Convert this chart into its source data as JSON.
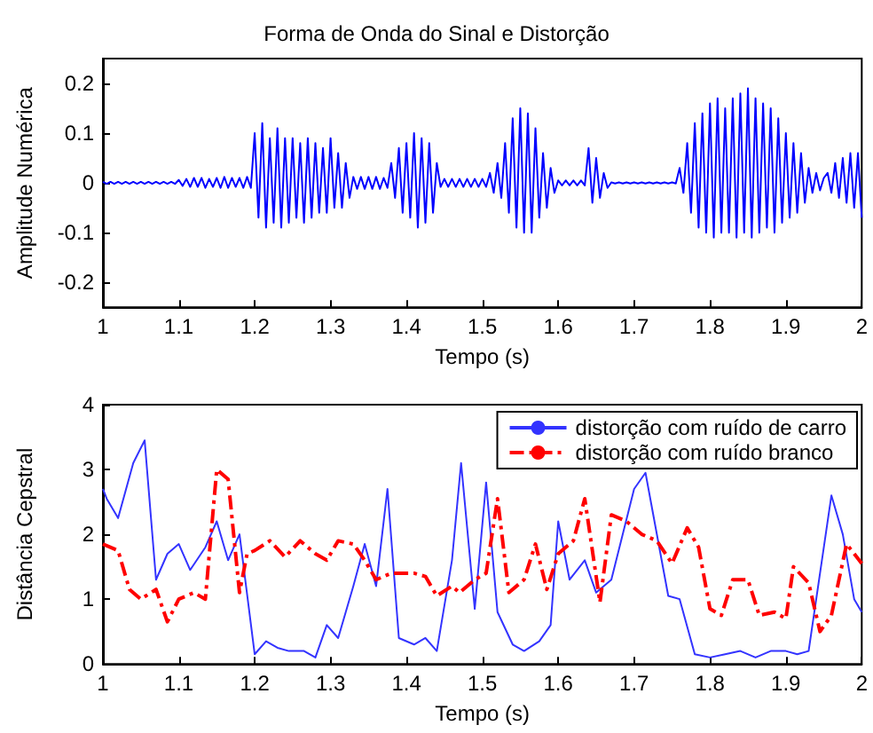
{
  "chart_data": [
    {
      "type": "line",
      "title": "Forma de Onda do Sinal e Distorção",
      "xlabel": "Tempo (s)",
      "ylabel": "Amplitude Numérica",
      "xlim": [
        1,
        2
      ],
      "ylim": [
        -0.25,
        0.25
      ],
      "xticks": [
        1,
        1.1,
        1.2,
        1.3,
        1.4,
        1.5,
        1.6,
        1.7,
        1.8,
        1.9,
        2
      ],
      "yticks": [
        -0.2,
        -0.1,
        0,
        0.1,
        0.2
      ],
      "grid": false,
      "legend": false,
      "marker": "none",
      "series": [
        {
          "color": "#0000ff",
          "line_style": "solid",
          "x": [
            1,
            1.005,
            1.01,
            1.015,
            1.02,
            1.025,
            1.03,
            1.035,
            1.04,
            1.045,
            1.05,
            1.055,
            1.06,
            1.065,
            1.07,
            1.075,
            1.08,
            1.085,
            1.09,
            1.095,
            1.1,
            1.105,
            1.11,
            1.115,
            1.12,
            1.125,
            1.13,
            1.135,
            1.14,
            1.145,
            1.15,
            1.155,
            1.16,
            1.165,
            1.17,
            1.175,
            1.18,
            1.185,
            1.19,
            1.195,
            1.2,
            1.205,
            1.21,
            1.215,
            1.22,
            1.225,
            1.23,
            1.235,
            1.24,
            1.245,
            1.25,
            1.255,
            1.26,
            1.265,
            1.27,
            1.275,
            1.28,
            1.285,
            1.29,
            1.295,
            1.3,
            1.305,
            1.31,
            1.315,
            1.32,
            1.325,
            1.33,
            1.335,
            1.34,
            1.345,
            1.35,
            1.355,
            1.36,
            1.365,
            1.37,
            1.375,
            1.38,
            1.385,
            1.39,
            1.395,
            1.4,
            1.405,
            1.41,
            1.415,
            1.42,
            1.425,
            1.43,
            1.435,
            1.44,
            1.445,
            1.45,
            1.455,
            1.46,
            1.465,
            1.47,
            1.475,
            1.48,
            1.485,
            1.49,
            1.495,
            1.5,
            1.505,
            1.51,
            1.515,
            1.52,
            1.525,
            1.53,
            1.535,
            1.54,
            1.545,
            1.55,
            1.555,
            1.56,
            1.565,
            1.57,
            1.575,
            1.58,
            1.585,
            1.59,
            1.595,
            1.6,
            1.605,
            1.61,
            1.615,
            1.62,
            1.625,
            1.63,
            1.635,
            1.64,
            1.645,
            1.65,
            1.655,
            1.66,
            1.665,
            1.67,
            1.675,
            1.68,
            1.685,
            1.69,
            1.695,
            1.7,
            1.705,
            1.71,
            1.715,
            1.72,
            1.725,
            1.73,
            1.735,
            1.74,
            1.745,
            1.75,
            1.755,
            1.76,
            1.765,
            1.77,
            1.775,
            1.78,
            1.785,
            1.79,
            1.795,
            1.8,
            1.805,
            1.81,
            1.815,
            1.82,
            1.825,
            1.83,
            1.835,
            1.84,
            1.845,
            1.85,
            1.855,
            1.86,
            1.865,
            1.87,
            1.875,
            1.88,
            1.885,
            1.89,
            1.895,
            1.9,
            1.905,
            1.91,
            1.915,
            1.92,
            1.925,
            1.93,
            1.935,
            1.94,
            1.945,
            1.95,
            1.955,
            1.96,
            1.965,
            1.97,
            1.975,
            1.98,
            1.985,
            1.99,
            1.995,
            2
          ],
          "values": [
            0.002,
            -0.002,
            0.002,
            -0.002,
            0.002,
            -0.002,
            0.002,
            -0.002,
            0.002,
            -0.002,
            0.002,
            -0.002,
            0.002,
            -0.002,
            0.002,
            -0.002,
            0.002,
            -0.002,
            0.002,
            -0.002,
            0.006,
            -0.006,
            0.008,
            -0.008,
            0.01,
            -0.008,
            0.01,
            -0.01,
            0.008,
            -0.008,
            0.01,
            -0.01,
            0.012,
            -0.01,
            0.01,
            -0.008,
            0.01,
            -0.01,
            0.012,
            -0.01,
            0.1,
            -0.07,
            0.12,
            -0.09,
            0.09,
            -0.08,
            0.11,
            -0.09,
            0.09,
            -0.08,
            0.09,
            -0.07,
            0.08,
            -0.08,
            0.09,
            -0.07,
            0.08,
            -0.06,
            0.07,
            -0.06,
            0.09,
            -0.05,
            0.06,
            -0.05,
            0.04,
            -0.03,
            0.012,
            -0.012,
            0.012,
            -0.012,
            0.012,
            -0.012,
            0.012,
            -0.012,
            0.01,
            -0.01,
            0.04,
            -0.03,
            0.07,
            -0.06,
            0.08,
            -0.07,
            0.1,
            -0.09,
            0.09,
            -0.08,
            0.08,
            -0.06,
            0.04,
            -0.008,
            0.008,
            -0.008,
            0.008,
            -0.008,
            0.008,
            -0.008,
            0.008,
            -0.008,
            0.008,
            -0.008,
            0.008,
            -0.008,
            0.02,
            -0.02,
            0.04,
            -0.03,
            0.08,
            -0.06,
            0.13,
            -0.09,
            0.15,
            -0.1,
            0.14,
            -0.1,
            0.11,
            -0.07,
            0.06,
            -0.05,
            0.03,
            -0.02,
            0.005,
            -0.005,
            0.005,
            -0.005,
            0.005,
            -0.005,
            0.005,
            -0.005,
            0.07,
            -0.04,
            0.05,
            -0.03,
            0.02,
            -0.01,
            0.001,
            -0.001,
            0.001,
            -0.001,
            0.001,
            -0.001,
            0.001,
            -0.001,
            0.001,
            -0.001,
            0.001,
            -0.001,
            0.001,
            -0.001,
            0.001,
            -0.001,
            0.001,
            -0.001,
            0.03,
            -0.02,
            0.08,
            -0.06,
            0.12,
            -0.09,
            0.14,
            -0.1,
            0.16,
            -0.11,
            0.17,
            -0.1,
            0.15,
            -0.1,
            0.17,
            -0.11,
            0.18,
            -0.1,
            0.19,
            -0.11,
            0.17,
            -0.1,
            0.16,
            -0.09,
            0.15,
            -0.1,
            0.13,
            -0.08,
            0.1,
            -0.07,
            0.08,
            -0.06,
            0.06,
            -0.04,
            0.03,
            -0.02,
            0.02,
            -0.015,
            0.01,
            0.02,
            -0.02,
            0.04,
            -0.03,
            0.05,
            -0.04,
            0.06,
            -0.05,
            0.06,
            -0.07
          ]
        }
      ]
    },
    {
      "type": "line",
      "xlabel": "Tempo (s)",
      "ylabel": "Distância Cepstral",
      "xlim": [
        1,
        2
      ],
      "ylim": [
        0,
        4
      ],
      "xticks": [
        1,
        1.1,
        1.2,
        1.3,
        1.4,
        1.5,
        1.6,
        1.7,
        1.8,
        1.9,
        2
      ],
      "yticks": [
        0,
        1,
        2,
        3,
        4
      ],
      "grid": false,
      "legend": "top right",
      "marker": "none",
      "series": [
        {
          "name": "distorção com ruído de carro",
          "color": "#3333ff",
          "line_style": "solid",
          "x": [
            1,
            1.005,
            1.02,
            1.04,
            1.055,
            1.07,
            1.085,
            1.1,
            1.115,
            1.135,
            1.15,
            1.165,
            1.18,
            1.2,
            1.215,
            1.23,
            1.245,
            1.265,
            1.28,
            1.295,
            1.31,
            1.33,
            1.345,
            1.36,
            1.375,
            1.39,
            1.41,
            1.425,
            1.44,
            1.46,
            1.472,
            1.49,
            1.505,
            1.52,
            1.54,
            1.555,
            1.575,
            1.59,
            1.6,
            1.615,
            1.635,
            1.65,
            1.67,
            1.7,
            1.715,
            1.745,
            1.76,
            1.78,
            1.8,
            1.82,
            1.84,
            1.86,
            1.88,
            1.9,
            1.915,
            1.93,
            1.96,
            1.975,
            1.99,
            2
          ],
          "values": [
            2.7,
            2.55,
            2.25,
            3.1,
            3.45,
            1.3,
            1.7,
            1.85,
            1.45,
            1.8,
            2.2,
            1.6,
            2.0,
            0.15,
            0.35,
            0.25,
            0.2,
            0.2,
            0.1,
            0.6,
            0.4,
            1.2,
            1.85,
            1.2,
            2.7,
            0.4,
            0.3,
            0.4,
            0.2,
            1.6,
            3.1,
            0.85,
            2.8,
            0.8,
            0.3,
            0.2,
            0.35,
            0.6,
            2.2,
            1.3,
            1.6,
            1.1,
            1.3,
            2.7,
            2.95,
            1.05,
            1.0,
            0.15,
            0.1,
            0.15,
            0.2,
            0.1,
            0.2,
            0.2,
            0.15,
            0.2,
            2.6,
            2.0,
            1.0,
            0.8
          ]
        },
        {
          "name": "distorção com ruído branco",
          "color": "#ff0000",
          "line_style": "dashed",
          "x": [
            1,
            1.02,
            1.035,
            1.05,
            1.07,
            1.085,
            1.1,
            1.12,
            1.135,
            1.15,
            1.165,
            1.18,
            1.19,
            1.2,
            1.22,
            1.24,
            1.26,
            1.28,
            1.295,
            1.31,
            1.33,
            1.345,
            1.36,
            1.38,
            1.41,
            1.425,
            1.44,
            1.46,
            1.47,
            1.49,
            1.505,
            1.52,
            1.535,
            1.555,
            1.57,
            1.585,
            1.6,
            1.62,
            1.635,
            1.655,
            1.67,
            1.69,
            1.71,
            1.73,
            1.75,
            1.77,
            1.785,
            1.8,
            1.815,
            1.83,
            1.85,
            1.865,
            1.885,
            1.9,
            1.91,
            1.93,
            1.945,
            1.96,
            1.98,
            2
          ],
          "values": [
            1.85,
            1.75,
            1.15,
            1.0,
            1.15,
            0.65,
            1.0,
            1.1,
            1.0,
            3.0,
            2.85,
            1.1,
            1.7,
            1.75,
            1.9,
            1.65,
            1.9,
            1.7,
            1.6,
            1.9,
            1.85,
            1.6,
            1.3,
            1.4,
            1.4,
            1.35,
            1.05,
            1.2,
            1.1,
            1.3,
            1.4,
            2.55,
            1.1,
            1.3,
            1.85,
            1.15,
            1.7,
            1.9,
            2.55,
            0.95,
            2.3,
            2.2,
            2.0,
            1.9,
            1.55,
            2.1,
            1.8,
            0.85,
            0.75,
            1.3,
            1.3,
            0.75,
            0.8,
            0.7,
            1.5,
            1.25,
            0.5,
            0.75,
            1.85,
            1.55
          ]
        }
      ]
    }
  ]
}
